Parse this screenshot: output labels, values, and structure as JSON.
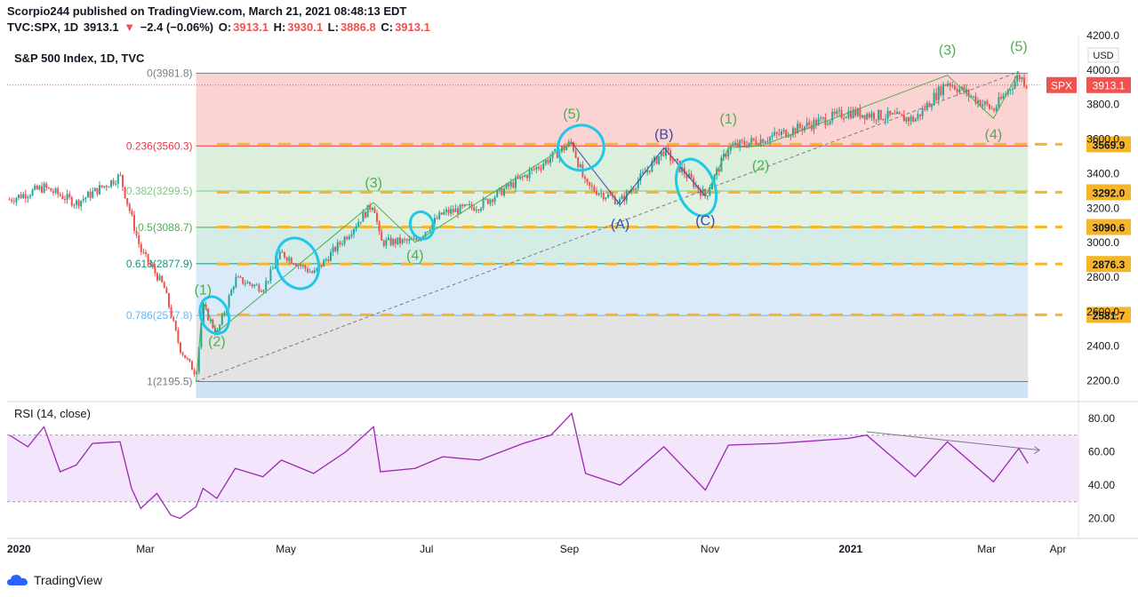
{
  "header": {
    "publisher_line": "Scorpio244 published on TradingView.com, March 21, 2021 08:48:13 EDT",
    "symbol": "TVC:SPX, 1D",
    "last": "3913.1",
    "change_arrow": "▼",
    "change": "−2.4 (−0.06%)",
    "o_label": "O:",
    "o_val": "3913.1",
    "h_label": "H:",
    "h_val": "3930.1",
    "l_label": "L:",
    "l_val": "3886.8",
    "c_label": "C:",
    "c_val": "3913.1"
  },
  "branding": {
    "logo_text": "TradingView"
  },
  "chart_data": [
    {
      "type": "candlestick",
      "title": "S&P 500 Index, 1D, TVC",
      "currency": "USD",
      "y_ticks": [
        2200,
        2400,
        2600,
        2800,
        3000,
        3200,
        3400,
        3600,
        3800,
        4000,
        4200
      ],
      "y_tick_labels": [
        "2200.0",
        "2400.0",
        "2600.0",
        "2800.0",
        "3000.0",
        "3200.0",
        "3400.0",
        "3600.0",
        "3800.0",
        "4000.0",
        "4200.0"
      ],
      "x_labels": [
        "2020",
        "Mar",
        "May",
        "Jul",
        "Sep",
        "Nov",
        "2021",
        "Mar",
        "Apr"
      ],
      "x_label_dates": [
        "2020-01-01",
        "2020-03-01",
        "2020-05-01",
        "2020-07-01",
        "2020-09-01",
        "2020-11-01",
        "2021-01-01",
        "2021-03-01",
        "2021-04-01"
      ],
      "price_label": "SPX",
      "price_label_value": 3913.1,
      "close_series": [
        {
          "d": "2020-01-02",
          "v": 3250
        },
        {
          "d": "2020-01-17",
          "v": 3320
        },
        {
          "d": "2020-01-31",
          "v": 3230
        },
        {
          "d": "2020-02-19",
          "v": 3386
        },
        {
          "d": "2020-02-28",
          "v": 2954
        },
        {
          "d": "2020-03-09",
          "v": 2746
        },
        {
          "d": "2020-03-16",
          "v": 2386
        },
        {
          "d": "2020-03-23",
          "v": 2237
        },
        {
          "d": "2020-03-26",
          "v": 2630
        },
        {
          "d": "2020-04-01",
          "v": 2470
        },
        {
          "d": "2020-04-09",
          "v": 2790
        },
        {
          "d": "2020-04-21",
          "v": 2736
        },
        {
          "d": "2020-04-29",
          "v": 2939
        },
        {
          "d": "2020-05-13",
          "v": 2820
        },
        {
          "d": "2020-05-27",
          "v": 3036
        },
        {
          "d": "2020-06-08",
          "v": 3232
        },
        {
          "d": "2020-06-11",
          "v": 3002
        },
        {
          "d": "2020-06-26",
          "v": 3009
        },
        {
          "d": "2020-07-08",
          "v": 3170
        },
        {
          "d": "2020-07-24",
          "v": 3216
        },
        {
          "d": "2020-08-12",
          "v": 3380
        },
        {
          "d": "2020-09-02",
          "v": 3580
        },
        {
          "d": "2020-09-08",
          "v": 3331
        },
        {
          "d": "2020-09-23",
          "v": 3237
        },
        {
          "d": "2020-10-12",
          "v": 3534
        },
        {
          "d": "2020-10-30",
          "v": 3270
        },
        {
          "d": "2020-11-09",
          "v": 3550
        },
        {
          "d": "2020-11-30",
          "v": 3622
        },
        {
          "d": "2020-12-31",
          "v": 3756
        },
        {
          "d": "2021-01-29",
          "v": 3714
        },
        {
          "d": "2021-02-12",
          "v": 3934
        },
        {
          "d": "2021-03-04",
          "v": 3768
        },
        {
          "d": "2021-03-15",
          "v": 3968
        },
        {
          "d": "2021-03-19",
          "v": 3913
        }
      ],
      "fibonacci": [
        {
          "ratio": "0",
          "value": 3981.8,
          "label": "0(3981.8)",
          "color": "#787b86"
        },
        {
          "ratio": "0.236",
          "value": 3560.3,
          "label": "0.236(3560.3)",
          "color": "#f23645"
        },
        {
          "ratio": "0.382",
          "value": 3299.5,
          "label": "0.382(3299.5)",
          "color": "#81c784"
        },
        {
          "ratio": "0.5",
          "value": 3088.7,
          "label": "0.5(3088.7)",
          "color": "#4caf50"
        },
        {
          "ratio": "0.618",
          "value": 2877.9,
          "label": "0.618(2877.9)",
          "color": "#089981"
        },
        {
          "ratio": "0.786",
          "value": 2577.8,
          "label": "0.786(2577.8)",
          "color": "#64b5f6"
        },
        {
          "ratio": "1",
          "value": 2195.5,
          "label": "1(2195.5)",
          "color": "#787b86"
        }
      ],
      "horizontal_levels": [
        {
          "value": 3569.9,
          "label": "3569.9"
        },
        {
          "value": 3292.0,
          "label": "3292.0"
        },
        {
          "value": 3090.6,
          "label": "3090.6"
        },
        {
          "value": 2876.3,
          "label": "2876.3"
        },
        {
          "value": 2581.7,
          "label": "2581.7"
        }
      ],
      "wave_labels": [
        {
          "text": "(1)",
          "d": "2020-03-26",
          "v": 2700,
          "color": "#4caf50"
        },
        {
          "text": "(2)",
          "d": "2020-04-01",
          "v": 2400,
          "color": "#4caf50"
        },
        {
          "text": "(3)",
          "d": "2020-06-08",
          "v": 3320,
          "color": "#4caf50"
        },
        {
          "text": "(4)",
          "d": "2020-06-26",
          "v": 2900,
          "color": "#4caf50"
        },
        {
          "text": "(5)",
          "d": "2020-09-02",
          "v": 3720,
          "color": "#4caf50"
        },
        {
          "text": "(A)",
          "d": "2020-09-23",
          "v": 3080,
          "color": "#3949ab"
        },
        {
          "text": "(B)",
          "d": "2020-10-12",
          "v": 3600,
          "color": "#3949ab"
        },
        {
          "text": "(C)",
          "d": "2020-10-30",
          "v": 3100,
          "color": "#3949ab"
        },
        {
          "text": "(1)",
          "d": "2020-11-09",
          "v": 3690,
          "color": "#4caf50"
        },
        {
          "text": "(2)",
          "d": "2020-11-23",
          "v": 3420,
          "color": "#4caf50"
        },
        {
          "text": "(3)",
          "d": "2021-02-12",
          "v": 4090,
          "color": "#4caf50"
        },
        {
          "text": "(4)",
          "d": "2021-03-04",
          "v": 3600,
          "color": "#4caf50"
        },
        {
          "text": "(5)",
          "d": "2021-03-15",
          "v": 4110,
          "color": "#4caf50"
        }
      ],
      "wave_path_green": [
        {
          "d": "2020-03-23",
          "v": 2195
        },
        {
          "d": "2020-03-26",
          "v": 2660
        },
        {
          "d": "2020-04-01",
          "v": 2480
        },
        {
          "d": "2020-06-08",
          "v": 3232
        },
        {
          "d": "2020-06-26",
          "v": 3002
        },
        {
          "d": "2020-09-02",
          "v": 3580
        }
      ],
      "wave_path_blue": [
        {
          "d": "2020-09-02",
          "v": 3580
        },
        {
          "d": "2020-09-23",
          "v": 3220
        },
        {
          "d": "2020-10-12",
          "v": 3550
        },
        {
          "d": "2020-10-30",
          "v": 3270
        }
      ],
      "wave_path_green2": [
        {
          "d": "2020-10-30",
          "v": 3270
        },
        {
          "d": "2020-11-09",
          "v": 3550
        },
        {
          "d": "2020-11-23",
          "v": 3560
        },
        {
          "d": "2021-02-12",
          "v": 3970
        },
        {
          "d": "2021-03-04",
          "v": 3720
        },
        {
          "d": "2021-03-15",
          "v": 3990
        }
      ],
      "trendline": [
        {
          "d": "2020-03-23",
          "v": 2195
        },
        {
          "d": "2021-03-15",
          "v": 3990
        }
      ],
      "circles": [
        {
          "d": "2020-03-31",
          "v": 2580,
          "rx_days": 6,
          "ry_val": 110
        },
        {
          "d": "2020-05-06",
          "v": 2880,
          "rx_days": 9,
          "ry_val": 150
        },
        {
          "d": "2020-06-29",
          "v": 3100,
          "rx_days": 5,
          "ry_val": 80
        },
        {
          "d": "2020-09-06",
          "v": 3550,
          "rx_days": 10,
          "ry_val": 130
        },
        {
          "d": "2020-10-26",
          "v": 3320,
          "rx_days": 8,
          "ry_val": 170
        }
      ]
    },
    {
      "type": "line",
      "title": "RSI (14, close)",
      "y_ticks": [
        20,
        40,
        60,
        80
      ],
      "y_tick_labels": [
        "20.00",
        "40.00",
        "60.00",
        "80.00"
      ],
      "band": [
        30,
        70
      ],
      "series": [
        {
          "d": "2020-01-02",
          "v": 70
        },
        {
          "d": "2020-01-10",
          "v": 63
        },
        {
          "d": "2020-01-17",
          "v": 75
        },
        {
          "d": "2020-01-24",
          "v": 48
        },
        {
          "d": "2020-01-31",
          "v": 52
        },
        {
          "d": "2020-02-07",
          "v": 65
        },
        {
          "d": "2020-02-19",
          "v": 66
        },
        {
          "d": "2020-02-24",
          "v": 38
        },
        {
          "d": "2020-02-28",
          "v": 26
        },
        {
          "d": "2020-03-06",
          "v": 35
        },
        {
          "d": "2020-03-12",
          "v": 22
        },
        {
          "d": "2020-03-16",
          "v": 20
        },
        {
          "d": "2020-03-23",
          "v": 27
        },
        {
          "d": "2020-03-26",
          "v": 38
        },
        {
          "d": "2020-04-01",
          "v": 32
        },
        {
          "d": "2020-04-09",
          "v": 50
        },
        {
          "d": "2020-04-21",
          "v": 45
        },
        {
          "d": "2020-04-29",
          "v": 55
        },
        {
          "d": "2020-05-13",
          "v": 47
        },
        {
          "d": "2020-05-27",
          "v": 60
        },
        {
          "d": "2020-06-08",
          "v": 75
        },
        {
          "d": "2020-06-11",
          "v": 48
        },
        {
          "d": "2020-06-26",
          "v": 50
        },
        {
          "d": "2020-07-08",
          "v": 57
        },
        {
          "d": "2020-07-24",
          "v": 55
        },
        {
          "d": "2020-08-12",
          "v": 65
        },
        {
          "d": "2020-08-24",
          "v": 70
        },
        {
          "d": "2020-09-02",
          "v": 83
        },
        {
          "d": "2020-09-08",
          "v": 47
        },
        {
          "d": "2020-09-23",
          "v": 40
        },
        {
          "d": "2020-10-12",
          "v": 63
        },
        {
          "d": "2020-10-30",
          "v": 37
        },
        {
          "d": "2020-11-09",
          "v": 64
        },
        {
          "d": "2020-11-30",
          "v": 65
        },
        {
          "d": "2020-12-31",
          "v": 68
        },
        {
          "d": "2021-01-08",
          "v": 70
        },
        {
          "d": "2021-01-29",
          "v": 45
        },
        {
          "d": "2021-02-12",
          "v": 66
        },
        {
          "d": "2021-03-04",
          "v": 42
        },
        {
          "d": "2021-03-15",
          "v": 62
        },
        {
          "d": "2021-03-19",
          "v": 53
        }
      ],
      "divergence_line": [
        {
          "d": "2021-01-08",
          "v": 72
        },
        {
          "d": "2021-03-24",
          "v": 61
        }
      ]
    }
  ]
}
